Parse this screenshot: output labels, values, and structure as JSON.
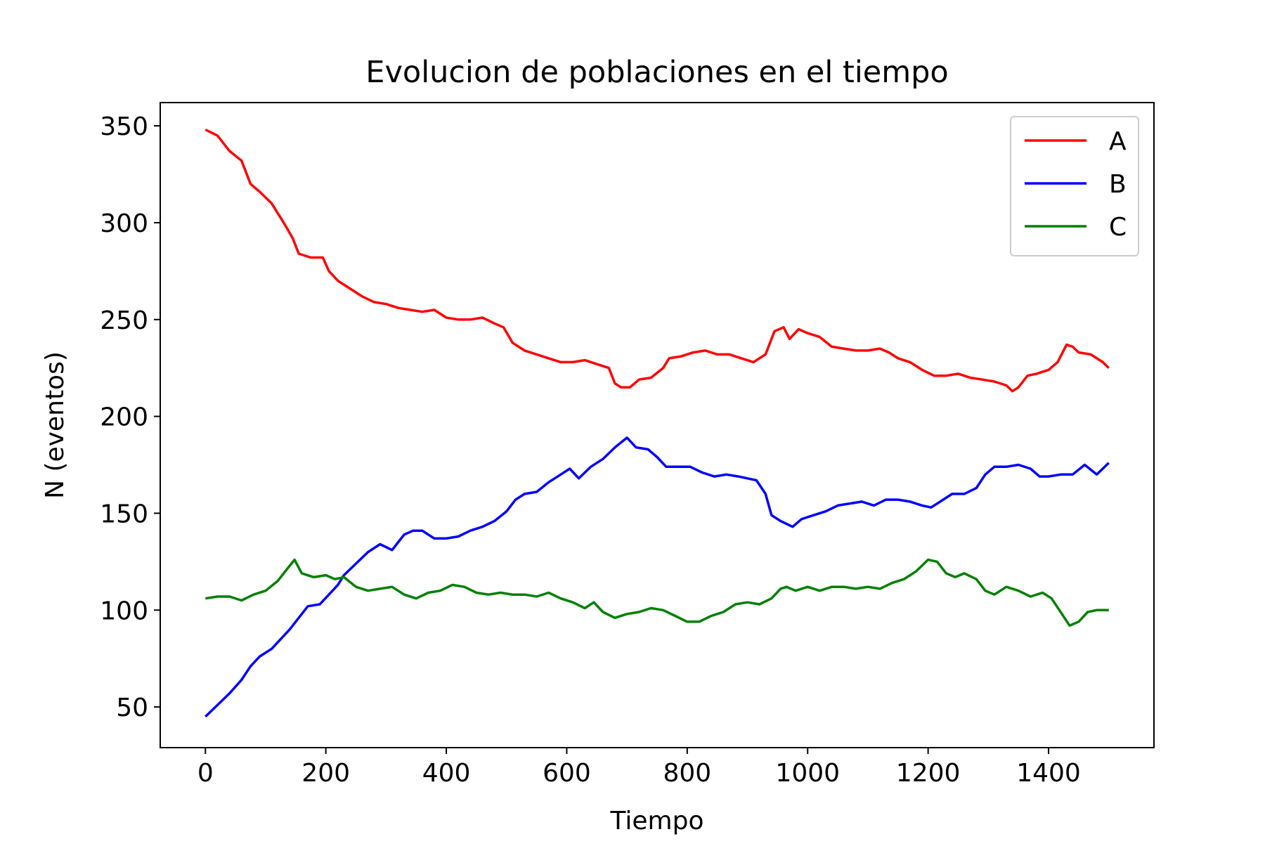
{
  "chart_data": {
    "type": "line",
    "title": "Evolucion de poblaciones en el tiempo",
    "xlabel": "Tiempo",
    "ylabel": "N (eventos)",
    "xlim": [
      -75,
      1575
    ],
    "ylim": [
      29,
      362
    ],
    "xticks": [
      0,
      200,
      400,
      600,
      800,
      1000,
      1200,
      1400
    ],
    "yticks": [
      50,
      100,
      150,
      200,
      250,
      300,
      350
    ],
    "grid": false,
    "legend_position": "top-right",
    "series": [
      {
        "name": "A",
        "color": "#ff0000",
        "points": [
          [
            0,
            348
          ],
          [
            20,
            345
          ],
          [
            40,
            337
          ],
          [
            60,
            332
          ],
          [
            75,
            320
          ],
          [
            90,
            316
          ],
          [
            110,
            310
          ],
          [
            130,
            300
          ],
          [
            145,
            292
          ],
          [
            155,
            284
          ],
          [
            175,
            282
          ],
          [
            195,
            282
          ],
          [
            205,
            275
          ],
          [
            220,
            270
          ],
          [
            240,
            266
          ],
          [
            260,
            262
          ],
          [
            280,
            259
          ],
          [
            300,
            258
          ],
          [
            320,
            256
          ],
          [
            340,
            255
          ],
          [
            360,
            254
          ],
          [
            380,
            255
          ],
          [
            400,
            251
          ],
          [
            420,
            250
          ],
          [
            440,
            250
          ],
          [
            460,
            251
          ],
          [
            480,
            248
          ],
          [
            495,
            246
          ],
          [
            510,
            238
          ],
          [
            530,
            234
          ],
          [
            550,
            232
          ],
          [
            570,
            230
          ],
          [
            590,
            228
          ],
          [
            610,
            228
          ],
          [
            630,
            229
          ],
          [
            650,
            227
          ],
          [
            670,
            225
          ],
          [
            680,
            217
          ],
          [
            690,
            215
          ],
          [
            705,
            215
          ],
          [
            720,
            219
          ],
          [
            740,
            220
          ],
          [
            760,
            225
          ],
          [
            770,
            230
          ],
          [
            790,
            231
          ],
          [
            810,
            233
          ],
          [
            830,
            234
          ],
          [
            850,
            232
          ],
          [
            870,
            232
          ],
          [
            890,
            230
          ],
          [
            910,
            228
          ],
          [
            930,
            232
          ],
          [
            945,
            244
          ],
          [
            960,
            246
          ],
          [
            970,
            240
          ],
          [
            985,
            245
          ],
          [
            1000,
            243
          ],
          [
            1020,
            241
          ],
          [
            1040,
            236
          ],
          [
            1060,
            235
          ],
          [
            1080,
            234
          ],
          [
            1100,
            234
          ],
          [
            1120,
            235
          ],
          [
            1135,
            233
          ],
          [
            1150,
            230
          ],
          [
            1170,
            228
          ],
          [
            1190,
            224
          ],
          [
            1210,
            221
          ],
          [
            1230,
            221
          ],
          [
            1250,
            222
          ],
          [
            1270,
            220
          ],
          [
            1290,
            219
          ],
          [
            1310,
            218
          ],
          [
            1330,
            216
          ],
          [
            1340,
            213
          ],
          [
            1350,
            215
          ],
          [
            1365,
            221
          ],
          [
            1380,
            222
          ],
          [
            1400,
            224
          ],
          [
            1415,
            228
          ],
          [
            1430,
            237
          ],
          [
            1440,
            236
          ],
          [
            1450,
            233
          ],
          [
            1470,
            232
          ],
          [
            1490,
            228
          ],
          [
            1500,
            225
          ]
        ]
      },
      {
        "name": "B",
        "color": "#0000ff",
        "points": [
          [
            0,
            45
          ],
          [
            20,
            51
          ],
          [
            40,
            57
          ],
          [
            60,
            64
          ],
          [
            75,
            71
          ],
          [
            90,
            76
          ],
          [
            110,
            80
          ],
          [
            125,
            85
          ],
          [
            140,
            90
          ],
          [
            155,
            96
          ],
          [
            170,
            102
          ],
          [
            190,
            103
          ],
          [
            205,
            108
          ],
          [
            220,
            113
          ],
          [
            230,
            118
          ],
          [
            250,
            124
          ],
          [
            270,
            130
          ],
          [
            290,
            134
          ],
          [
            310,
            131
          ],
          [
            330,
            139
          ],
          [
            345,
            141
          ],
          [
            360,
            141
          ],
          [
            380,
            137
          ],
          [
            400,
            137
          ],
          [
            420,
            138
          ],
          [
            440,
            141
          ],
          [
            460,
            143
          ],
          [
            480,
            146
          ],
          [
            500,
            151
          ],
          [
            515,
            157
          ],
          [
            530,
            160
          ],
          [
            550,
            161
          ],
          [
            570,
            166
          ],
          [
            590,
            170
          ],
          [
            605,
            173
          ],
          [
            620,
            168
          ],
          [
            640,
            174
          ],
          [
            660,
            178
          ],
          [
            680,
            184
          ],
          [
            700,
            189
          ],
          [
            715,
            184
          ],
          [
            735,
            183
          ],
          [
            750,
            179
          ],
          [
            765,
            174
          ],
          [
            785,
            174
          ],
          [
            805,
            174
          ],
          [
            825,
            171
          ],
          [
            845,
            169
          ],
          [
            865,
            170
          ],
          [
            885,
            169
          ],
          [
            900,
            168
          ],
          [
            915,
            167
          ],
          [
            930,
            160
          ],
          [
            940,
            149
          ],
          [
            955,
            146
          ],
          [
            975,
            143
          ],
          [
            990,
            147
          ],
          [
            1010,
            149
          ],
          [
            1030,
            151
          ],
          [
            1050,
            154
          ],
          [
            1070,
            155
          ],
          [
            1090,
            156
          ],
          [
            1110,
            154
          ],
          [
            1130,
            157
          ],
          [
            1150,
            157
          ],
          [
            1170,
            156
          ],
          [
            1190,
            154
          ],
          [
            1205,
            153
          ],
          [
            1220,
            156
          ],
          [
            1240,
            160
          ],
          [
            1260,
            160
          ],
          [
            1280,
            163
          ],
          [
            1295,
            170
          ],
          [
            1310,
            174
          ],
          [
            1330,
            174
          ],
          [
            1350,
            175
          ],
          [
            1370,
            173
          ],
          [
            1385,
            169
          ],
          [
            1400,
            169
          ],
          [
            1420,
            170
          ],
          [
            1440,
            170
          ],
          [
            1460,
            175
          ],
          [
            1480,
            170
          ],
          [
            1500,
            176
          ]
        ]
      },
      {
        "name": "C",
        "color": "#008000",
        "points": [
          [
            0,
            106
          ],
          [
            20,
            107
          ],
          [
            40,
            107
          ],
          [
            60,
            105
          ],
          [
            80,
            108
          ],
          [
            100,
            110
          ],
          [
            120,
            115
          ],
          [
            135,
            121
          ],
          [
            148,
            126
          ],
          [
            160,
            119
          ],
          [
            180,
            117
          ],
          [
            200,
            118
          ],
          [
            215,
            116
          ],
          [
            230,
            117
          ],
          [
            250,
            112
          ],
          [
            270,
            110
          ],
          [
            290,
            111
          ],
          [
            310,
            112
          ],
          [
            330,
            108
          ],
          [
            350,
            106
          ],
          [
            370,
            109
          ],
          [
            390,
            110
          ],
          [
            410,
            113
          ],
          [
            430,
            112
          ],
          [
            450,
            109
          ],
          [
            470,
            108
          ],
          [
            490,
            109
          ],
          [
            510,
            108
          ],
          [
            530,
            108
          ],
          [
            550,
            107
          ],
          [
            570,
            109
          ],
          [
            590,
            106
          ],
          [
            610,
            104
          ],
          [
            630,
            101
          ],
          [
            645,
            104
          ],
          [
            660,
            99
          ],
          [
            680,
            96
          ],
          [
            700,
            98
          ],
          [
            720,
            99
          ],
          [
            740,
            101
          ],
          [
            760,
            100
          ],
          [
            780,
            97
          ],
          [
            800,
            94
          ],
          [
            820,
            94
          ],
          [
            840,
            97
          ],
          [
            860,
            99
          ],
          [
            880,
            103
          ],
          [
            900,
            104
          ],
          [
            920,
            103
          ],
          [
            940,
            106
          ],
          [
            955,
            111
          ],
          [
            965,
            112
          ],
          [
            980,
            110
          ],
          [
            1000,
            112
          ],
          [
            1020,
            110
          ],
          [
            1040,
            112
          ],
          [
            1060,
            112
          ],
          [
            1080,
            111
          ],
          [
            1100,
            112
          ],
          [
            1120,
            111
          ],
          [
            1140,
            114
          ],
          [
            1160,
            116
          ],
          [
            1180,
            120
          ],
          [
            1200,
            126
          ],
          [
            1215,
            125
          ],
          [
            1230,
            119
          ],
          [
            1245,
            117
          ],
          [
            1260,
            119
          ],
          [
            1280,
            116
          ],
          [
            1295,
            110
          ],
          [
            1310,
            108
          ],
          [
            1330,
            112
          ],
          [
            1350,
            110
          ],
          [
            1370,
            107
          ],
          [
            1390,
            109
          ],
          [
            1405,
            106
          ],
          [
            1420,
            99
          ],
          [
            1435,
            92
          ],
          [
            1450,
            94
          ],
          [
            1465,
            99
          ],
          [
            1480,
            100
          ],
          [
            1500,
            100
          ]
        ]
      }
    ]
  }
}
